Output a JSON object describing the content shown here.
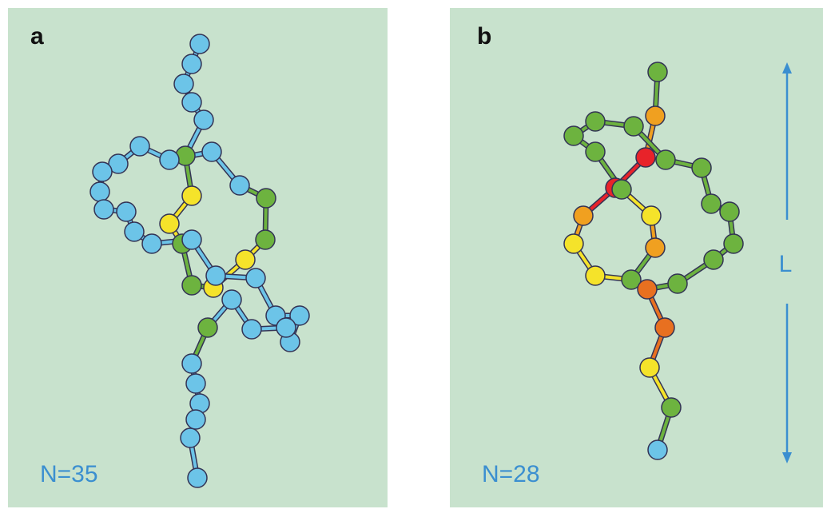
{
  "panels": [
    {
      "label": "a",
      "caption": "N=35"
    },
    {
      "label": "b",
      "caption": "N=28",
      "dimension": "L"
    }
  ]
}
